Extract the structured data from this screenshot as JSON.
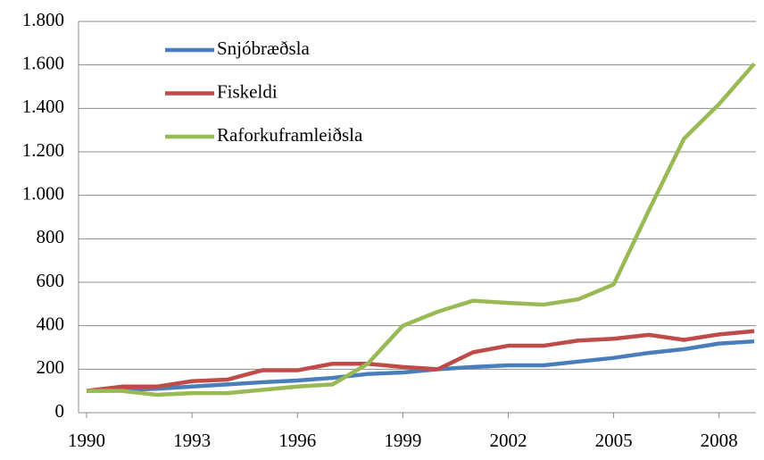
{
  "chart_data": {
    "type": "line",
    "x": [
      1990,
      1991,
      1992,
      1993,
      1994,
      1995,
      1996,
      1997,
      1998,
      1999,
      2000,
      2001,
      2002,
      2003,
      2004,
      2005,
      2006,
      2007,
      2008,
      2009
    ],
    "series": [
      {
        "name": "Snjóbræðsla",
        "color": "#4a7ebb",
        "values": [
          100,
          105,
          110,
          120,
          130,
          140,
          148,
          160,
          178,
          185,
          200,
          210,
          218,
          218,
          235,
          252,
          275,
          292,
          318,
          328
        ]
      },
      {
        "name": "Fiskeldi",
        "color": "#be4b48",
        "values": [
          100,
          120,
          120,
          145,
          152,
          195,
          195,
          225,
          225,
          210,
          200,
          278,
          308,
          308,
          332,
          340,
          358,
          335,
          360,
          375
        ]
      },
      {
        "name": "Raforkuframleiðsla",
        "color": "#98b954",
        "values": [
          100,
          100,
          82,
          90,
          90,
          105,
          120,
          130,
          225,
          400,
          465,
          515,
          505,
          497,
          522,
          590,
          930,
          1260,
          1420,
          1605
        ]
      }
    ],
    "xlim": [
      1989.77,
      2009.05
    ],
    "xticks": [
      1990,
      1993,
      1996,
      1999,
      2002,
      2005,
      2008
    ],
    "ylim": [
      0,
      1800
    ],
    "yticks": [
      0,
      200,
      400,
      600,
      800,
      {
        "value": 1000,
        "label": "1.000"
      },
      {
        "value": 1200,
        "label": "1.200"
      },
      {
        "value": 1400,
        "label": "1.400"
      },
      {
        "value": 1600,
        "label": "1.600"
      },
      {
        "value": 1800,
        "label": "1.800"
      }
    ],
    "grid": true,
    "legend": "upper-left"
  }
}
